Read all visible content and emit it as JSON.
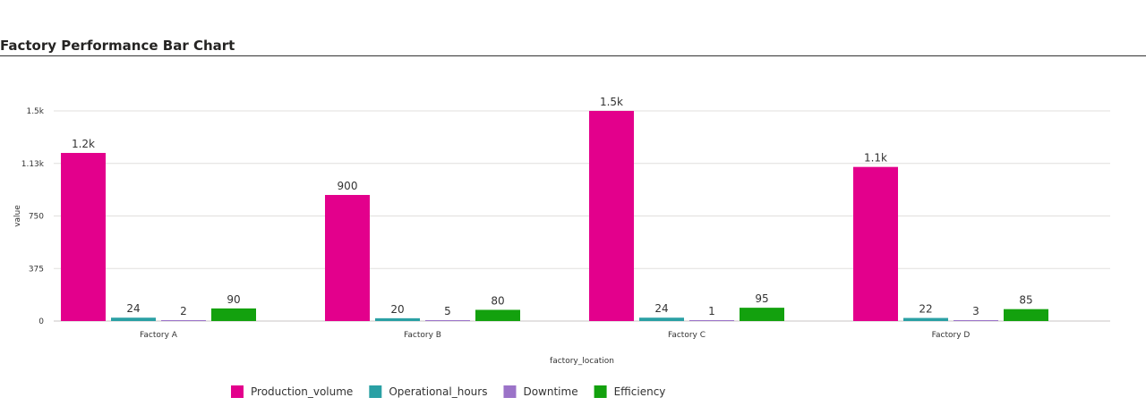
{
  "page": {
    "title": "Factory Performance Bar Chart"
  },
  "chart_data": {
    "type": "bar",
    "title": "Factory Performance Bar Chart",
    "xlabel": "factory_location",
    "ylabel": "value",
    "categories": [
      "Factory A",
      "Factory B",
      "Factory C",
      "Factory D"
    ],
    "ylim": [
      0,
      1500
    ],
    "yticks": [
      0,
      375,
      750,
      1125,
      1500
    ],
    "ytick_labels": [
      "0",
      "375",
      "750",
      "1.13k",
      "1.5k"
    ],
    "grid": true,
    "legend_position": "bottom",
    "series": [
      {
        "name": "Production_volume",
        "color": "#e3008c",
        "values": [
          1200,
          900,
          1500,
          1100
        ],
        "labels": [
          "1.2k",
          "900",
          "1.5k",
          "1.1k"
        ]
      },
      {
        "name": "Operational_hours",
        "color": "#2aa0a4",
        "values": [
          24,
          20,
          24,
          22
        ],
        "labels": [
          "24",
          "20",
          "24",
          "22"
        ]
      },
      {
        "name": "Downtime",
        "color": "#9b73c8",
        "values": [
          2,
          5,
          1,
          3
        ],
        "labels": [
          "2",
          "5",
          "1",
          "3"
        ]
      },
      {
        "name": "Efficiency",
        "color": "#13a10e",
        "values": [
          90,
          80,
          95,
          85
        ],
        "labels": [
          "90",
          "80",
          "95",
          "85"
        ]
      }
    ]
  }
}
